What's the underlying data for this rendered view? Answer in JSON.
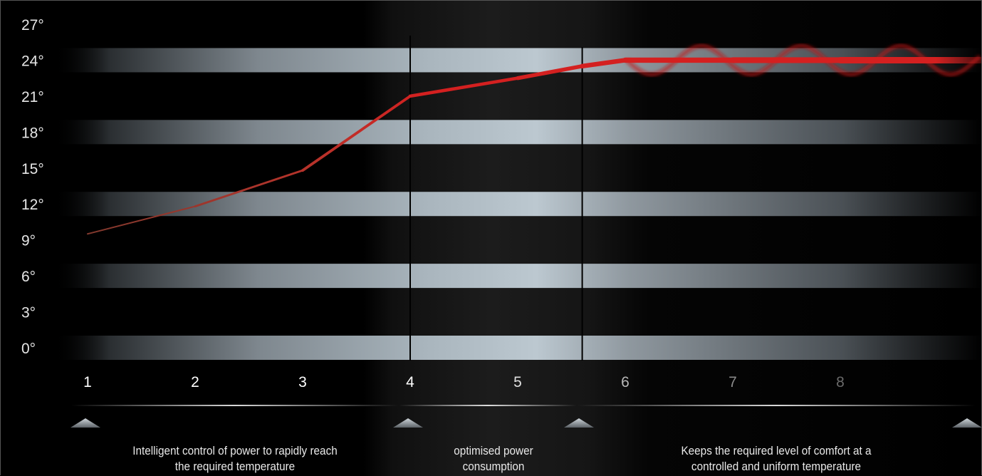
{
  "chart_data": {
    "type": "line",
    "title": "",
    "xlabel": "",
    "ylabel": "",
    "x": [
      1,
      2,
      3,
      4,
      5,
      5.6,
      6,
      7,
      8,
      9.5
    ],
    "x_ticks": [
      "1",
      "2",
      "3",
      "4",
      "5",
      "6",
      "7",
      "8"
    ],
    "y_ticks": [
      "27°",
      "24°",
      "21°",
      "18°",
      "15°",
      "12°",
      "9°",
      "6°",
      "3°",
      "0°"
    ],
    "ylim": [
      0,
      27
    ],
    "xlim": [
      0.75,
      9.5
    ],
    "series": [
      {
        "values": [
          9.5,
          11.8,
          14.8,
          21,
          22.5,
          23.5,
          24,
          24,
          24,
          24
        ]
      }
    ],
    "phase_dividers": [
      4,
      5.6
    ],
    "phases": [
      {
        "line1": "Intelligent control of power to rapidly reach",
        "line2": "the required temperature"
      },
      {
        "line1": "optimised power",
        "line2": "consumption"
      },
      {
        "line1": "Keeps the required level of comfort at a",
        "line2": "controlled and uniform temperature"
      }
    ],
    "colors": {
      "line": "#d42020",
      "line_start": "#8a3a2a",
      "band": "#b9c6cf",
      "text": "#e6e6e6"
    },
    "grid": true,
    "legend": "none"
  }
}
